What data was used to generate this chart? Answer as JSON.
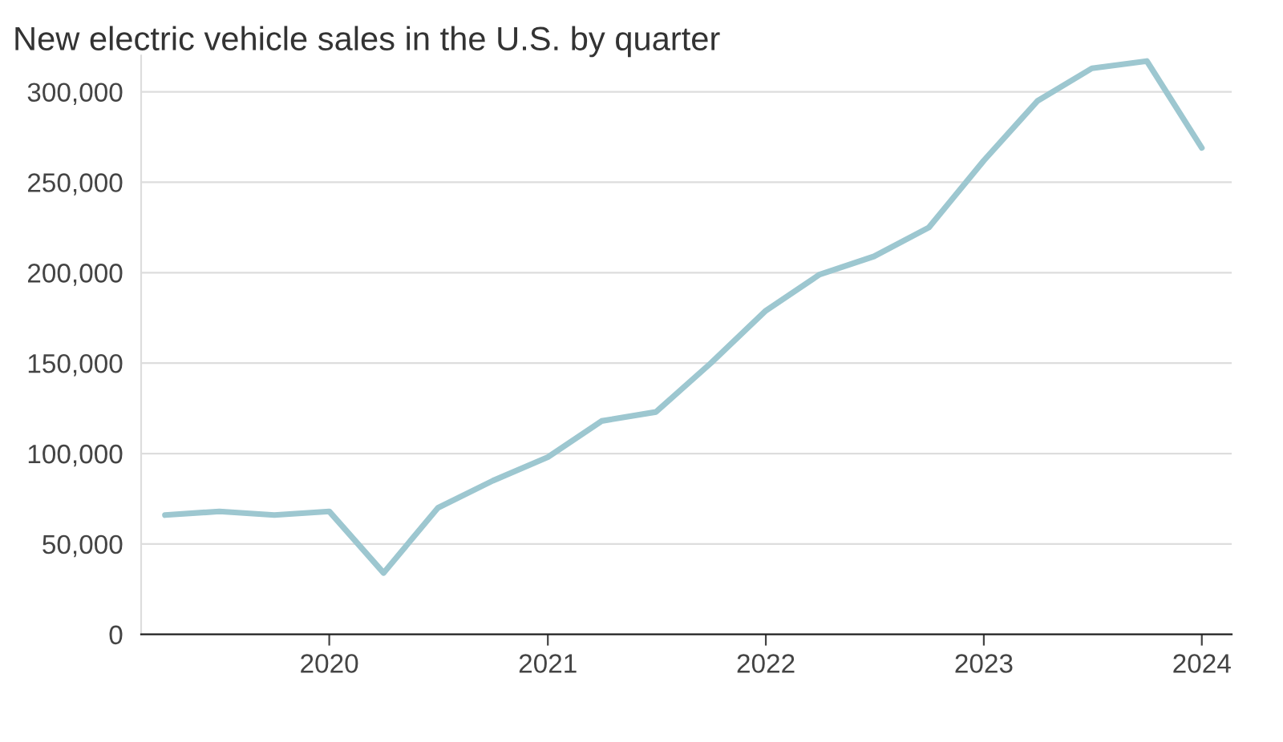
{
  "chart_data": {
    "type": "line",
    "title": "New electric vehicle sales in the U.S. by quarter",
    "x": [
      "2019-04-01",
      "2019-07-01",
      "2019-10-01",
      "2020-01-01",
      "2020-04-01",
      "2020-07-01",
      "2020-10-01",
      "2021-01-01",
      "2021-04-01",
      "2021-07-01",
      "2021-10-01",
      "2022-01-01",
      "2022-04-01",
      "2022-07-01",
      "2022-10-01",
      "2023-01-01",
      "2023-04-01",
      "2023-07-01",
      "2023-10-01",
      "2024-01-01"
    ],
    "series": [
      {
        "color": "#9dc7d0",
        "values": [
          66000,
          68000,
          66000,
          68000,
          34000,
          70000,
          85000,
          98000,
          118000,
          123000,
          150000,
          179000,
          199000,
          209000,
          225000,
          262000,
          295000,
          313000,
          317000,
          269000
        ]
      }
    ],
    "xlim": [
      "2019-02-20",
      "2024-02-20"
    ],
    "xticks": [
      {
        "value": "2020-01-01",
        "label": "2020"
      },
      {
        "value": "2021-01-01",
        "label": "2021"
      },
      {
        "value": "2022-01-01",
        "label": "2022"
      },
      {
        "value": "2023-01-01",
        "label": "2023"
      },
      {
        "value": "2024-01-01",
        "label": "2024"
      }
    ],
    "ylim": [
      0,
      320000
    ],
    "yticks": [
      {
        "value": 0,
        "label": "0"
      },
      {
        "value": 50000,
        "label": "50,000"
      },
      {
        "value": 100000,
        "label": "100,000"
      },
      {
        "value": 150000,
        "label": "150,000"
      },
      {
        "value": 200000,
        "label": "200,000"
      },
      {
        "value": 250000,
        "label": "250,000"
      },
      {
        "value": 300000,
        "label": "300,000"
      }
    ],
    "grid": "y",
    "marker": "none",
    "line_style": "solid"
  }
}
